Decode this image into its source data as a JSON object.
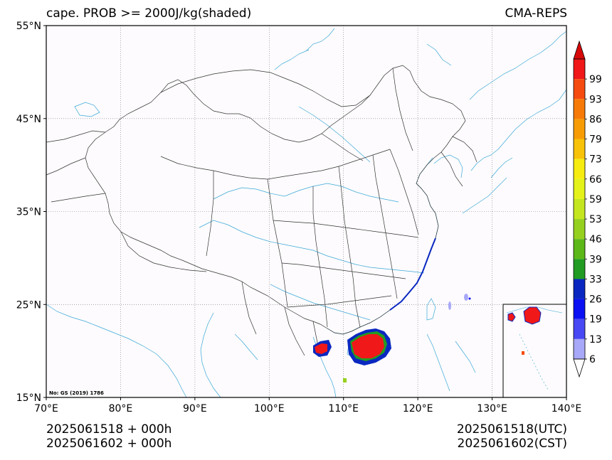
{
  "header": {
    "title": "cape. PROB >= 2000J/kg(shaded)",
    "model": "CMA-REPS"
  },
  "map": {
    "lon_range": [
      70,
      140
    ],
    "lat_range": [
      15,
      55
    ],
    "lon_ticks": [
      "70°E",
      "80°E",
      "90°E",
      "100°E",
      "110°E",
      "120°E",
      "130°E",
      "140°E"
    ],
    "lat_ticks": [
      "55°N",
      "45°N",
      "35°N",
      "25°N",
      "15°N"
    ],
    "note": "No: GS (2019) 1786",
    "colors": {
      "border": "#333333",
      "river": "#3aa8d8",
      "grid": "#777777",
      "background": "#fdfbfd"
    }
  },
  "colorbar": {
    "labels": [
      "99",
      "93",
      "86",
      "79",
      "73",
      "66",
      "59",
      "53",
      "46",
      "39",
      "33",
      "26",
      "19",
      "13",
      "6"
    ],
    "colors": [
      "#f01818",
      "#f54b10",
      "#f77a08",
      "#f89c06",
      "#f8c208",
      "#f6ec10",
      "#e4f21a",
      "#c4e61e",
      "#96d01e",
      "#5cb818",
      "#229c22",
      "#0a28c0",
      "#0a10f2",
      "#4848f4",
      "#a8a8f8"
    ],
    "under_color": "#ffffff",
    "over_color": "#d80808"
  },
  "footer": {
    "init_plus_lead_1": "2025061518  +  000h",
    "init_plus_lead_2": "2025061602  +  000h",
    "valid_utc": "2025061518(UTC)",
    "valid_cst": "2025061602(CST)"
  }
}
